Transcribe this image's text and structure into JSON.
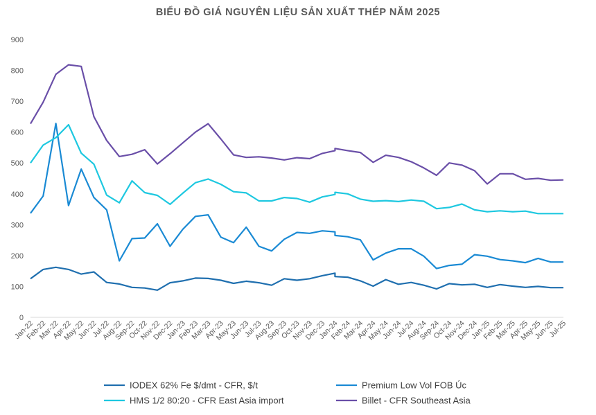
{
  "chart_data": {
    "type": "line",
    "title": "BIỂU ĐỒ GIÁ NGUYÊN LIỆU SẢN XUẤT THÉP NĂM 2025",
    "xlabel": "",
    "ylabel": "",
    "ylim": [
      0,
      900
    ],
    "yticks": [
      "0",
      "100",
      "200",
      "300",
      "400",
      "500",
      "600",
      "700",
      "800",
      "900"
    ],
    "grid": false,
    "legend_position": "bottom",
    "x": [
      "Jan-22",
      "Feb-22",
      "Mar-22",
      "Apr-22",
      "May-22",
      "Jun-22",
      "Jul-22",
      "Aug-22",
      "Sep-22",
      "Oct-22",
      "Nov-22",
      "Dec-22",
      "Jan-23",
      "Feb-23",
      "Mar-23",
      "Apr-23",
      "May-23",
      "Jun-23",
      "Jul-23",
      "Aug-23",
      "Sep-23",
      "Oct-23",
      "Nov-23",
      "Dec-23",
      "Jan-24",
      "Feb-24",
      "Mar-24",
      "Apr-24",
      "May-24",
      "Jun-24",
      "Jul-24",
      "Aug-24",
      "Sep-24",
      "Oct-24",
      "Nov-24",
      "Dec-24",
      "Jan-25",
      "Feb-25",
      "Mar-25",
      "Apr-25",
      "May-25",
      "Jun-25",
      "Jul-25"
    ],
    "series": [
      {
        "name": "IODEX 62% Fe $/dmt - CFR, $/t",
        "color": "#1f6faf",
        "points": [
          [
            0,
            125
          ],
          [
            1,
            155
          ],
          [
            2,
            162
          ],
          [
            3,
            155
          ],
          [
            4,
            140
          ],
          [
            5,
            147
          ],
          [
            6,
            113
          ],
          [
            7,
            108
          ],
          [
            8,
            97
          ],
          [
            9,
            95
          ],
          [
            10,
            88
          ],
          [
            11,
            112
          ],
          [
            12,
            118
          ],
          [
            13,
            127
          ],
          [
            14,
            126
          ],
          [
            15,
            120
          ],
          [
            16,
            110
          ],
          [
            17,
            117
          ],
          [
            18,
            112
          ],
          [
            19,
            104
          ],
          [
            20,
            125
          ],
          [
            21,
            120
          ],
          [
            22,
            125
          ],
          [
            23,
            135
          ],
          [
            24,
            143
          ],
          [
            24,
            132
          ],
          [
            25,
            130
          ],
          [
            26,
            118
          ],
          [
            27,
            101
          ],
          [
            28,
            122
          ],
          [
            29,
            107
          ],
          [
            30,
            113
          ],
          [
            31,
            104
          ],
          [
            32,
            92
          ],
          [
            33,
            109
          ],
          [
            34,
            105
          ],
          [
            35,
            107
          ],
          [
            36,
            97
          ],
          [
            37,
            106
          ],
          [
            38,
            101
          ],
          [
            39,
            97
          ],
          [
            40,
            100
          ],
          [
            41,
            96
          ],
          [
            42,
            96
          ]
        ]
      },
      {
        "name": "Premium Low Vol FOB Úc",
        "color": "#1a8ad4",
        "points": [
          [
            0,
            337
          ],
          [
            1,
            393
          ],
          [
            2,
            628
          ],
          [
            3,
            362
          ],
          [
            4,
            480
          ],
          [
            5,
            388
          ],
          [
            6,
            348
          ],
          [
            7,
            183
          ],
          [
            8,
            255
          ],
          [
            9,
            257
          ],
          [
            10,
            303
          ],
          [
            11,
            230
          ],
          [
            12,
            285
          ],
          [
            13,
            327
          ],
          [
            14,
            332
          ],
          [
            15,
            260
          ],
          [
            16,
            242
          ],
          [
            17,
            292
          ],
          [
            18,
            230
          ],
          [
            19,
            215
          ],
          [
            20,
            253
          ],
          [
            21,
            275
          ],
          [
            22,
            272
          ],
          [
            23,
            280
          ],
          [
            24,
            277
          ],
          [
            24,
            265
          ],
          [
            25,
            261
          ],
          [
            26,
            251
          ],
          [
            27,
            186
          ],
          [
            28,
            208
          ],
          [
            29,
            222
          ],
          [
            30,
            222
          ],
          [
            31,
            198
          ],
          [
            32,
            158
          ],
          [
            33,
            168
          ],
          [
            34,
            172
          ],
          [
            35,
            203
          ],
          [
            36,
            198
          ],
          [
            37,
            187
          ],
          [
            38,
            183
          ],
          [
            39,
            177
          ],
          [
            40,
            191
          ],
          [
            41,
            179
          ],
          [
            42,
            179
          ]
        ]
      },
      {
        "name": "HMS 1/2 80:20 - CFR East Asia import",
        "color": "#1ec8e0",
        "points": [
          [
            0,
            500
          ],
          [
            1,
            558
          ],
          [
            2,
            582
          ],
          [
            3,
            624
          ],
          [
            4,
            532
          ],
          [
            5,
            496
          ],
          [
            6,
            396
          ],
          [
            7,
            371
          ],
          [
            8,
            442
          ],
          [
            9,
            404
          ],
          [
            10,
            395
          ],
          [
            11,
            366
          ],
          [
            12,
            402
          ],
          [
            13,
            436
          ],
          [
            14,
            448
          ],
          [
            15,
            431
          ],
          [
            16,
            407
          ],
          [
            17,
            403
          ],
          [
            18,
            377
          ],
          [
            19,
            377
          ],
          [
            20,
            388
          ],
          [
            21,
            385
          ],
          [
            22,
            373
          ],
          [
            23,
            390
          ],
          [
            24,
            398
          ],
          [
            24,
            405
          ],
          [
            25,
            400
          ],
          [
            26,
            383
          ],
          [
            27,
            376
          ],
          [
            28,
            378
          ],
          [
            29,
            375
          ],
          [
            30,
            380
          ],
          [
            31,
            376
          ],
          [
            32,
            352
          ],
          [
            33,
            356
          ],
          [
            34,
            367
          ],
          [
            35,
            348
          ],
          [
            36,
            342
          ],
          [
            37,
            345
          ],
          [
            38,
            342
          ],
          [
            39,
            344
          ],
          [
            40,
            336
          ],
          [
            41,
            336
          ],
          [
            42,
            336
          ]
        ]
      },
      {
        "name": "Billet - CFR Southeast Asia",
        "color": "#6a4fa8",
        "points": [
          [
            0,
            627
          ],
          [
            1,
            697
          ],
          [
            2,
            787
          ],
          [
            3,
            818
          ],
          [
            4,
            813
          ],
          [
            5,
            650
          ],
          [
            6,
            573
          ],
          [
            7,
            521
          ],
          [
            8,
            528
          ],
          [
            9,
            543
          ],
          [
            10,
            497
          ],
          [
            11,
            530
          ],
          [
            12,
            565
          ],
          [
            13,
            600
          ],
          [
            14,
            627
          ],
          [
            15,
            578
          ],
          [
            16,
            526
          ],
          [
            17,
            518
          ],
          [
            18,
            520
          ],
          [
            19,
            516
          ],
          [
            20,
            510
          ],
          [
            21,
            517
          ],
          [
            22,
            514
          ],
          [
            23,
            531
          ],
          [
            24,
            540
          ],
          [
            24,
            547
          ],
          [
            25,
            540
          ],
          [
            26,
            534
          ],
          [
            27,
            502
          ],
          [
            28,
            525
          ],
          [
            29,
            518
          ],
          [
            30,
            504
          ],
          [
            31,
            484
          ],
          [
            32,
            460
          ],
          [
            33,
            500
          ],
          [
            34,
            493
          ],
          [
            35,
            475
          ],
          [
            36,
            432
          ],
          [
            37,
            465
          ],
          [
            38,
            465
          ],
          [
            39,
            447
          ],
          [
            40,
            450
          ],
          [
            41,
            444
          ],
          [
            42,
            445
          ]
        ]
      }
    ]
  }
}
